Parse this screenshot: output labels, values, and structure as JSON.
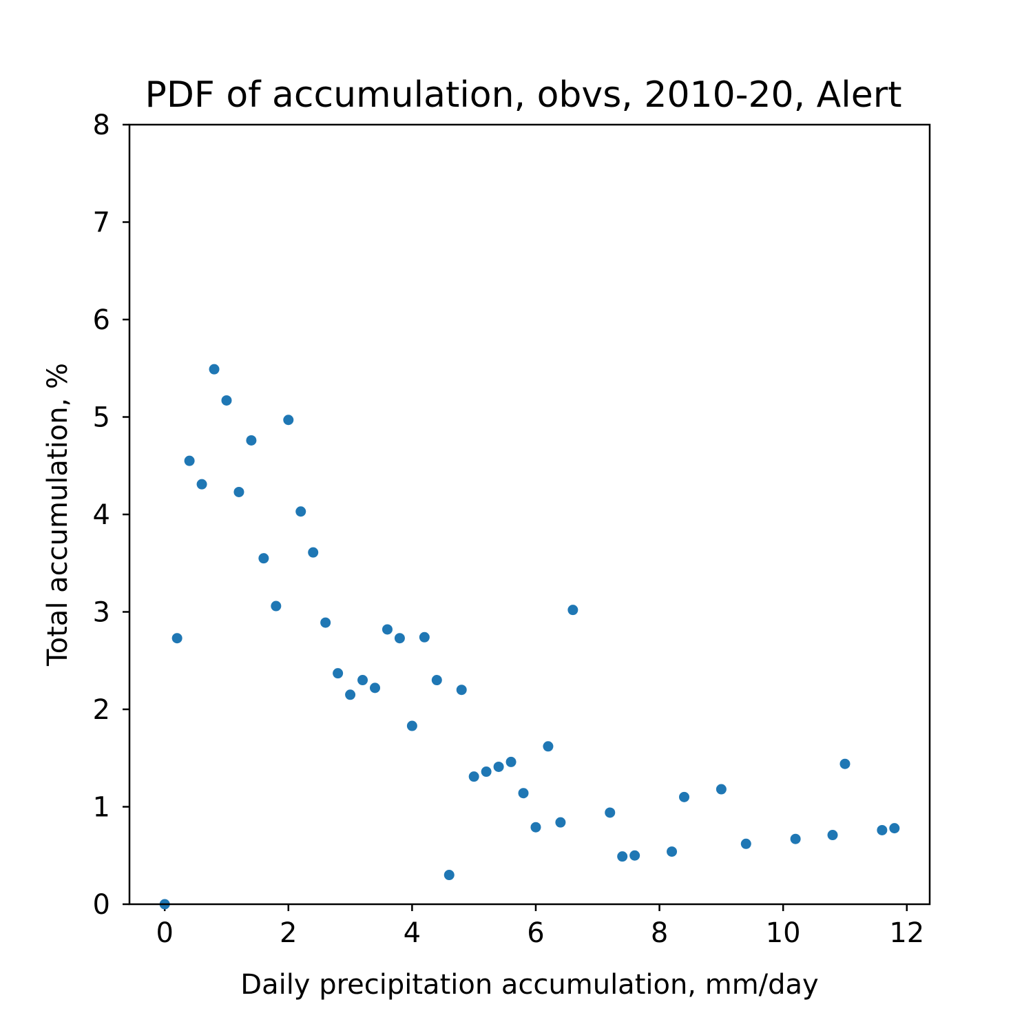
{
  "colors": {
    "marker": "#1f77b4",
    "axes": "#000000",
    "background": "#ffffff"
  },
  "chart_data": {
    "type": "scatter",
    "title": "PDF of accumulation, obvs, 2010-20, Alert",
    "xlabel": "Daily precipitation accumulation, mm/day",
    "ylabel": "Total accumulation, %",
    "xlim": [
      -0.57,
      12.37
    ],
    "ylim": [
      0,
      8
    ],
    "xticks": [
      0,
      2,
      4,
      6,
      8,
      10,
      12
    ],
    "yticks": [
      0,
      1,
      2,
      3,
      4,
      5,
      6,
      7,
      8
    ],
    "grid": false,
    "legend": "none",
    "series": [
      {
        "x": [
          0.0,
          0.2,
          0.4,
          0.6,
          0.8,
          1.0,
          1.2,
          1.4,
          1.6,
          1.8,
          2.0,
          2.2,
          2.4,
          2.6,
          2.8,
          3.0,
          3.2,
          3.4,
          3.6,
          3.8,
          4.0,
          4.2,
          4.4,
          4.6,
          4.8,
          5.0,
          5.2,
          5.4,
          5.6,
          5.8,
          6.0,
          6.2,
          6.4,
          6.6,
          7.2,
          7.4,
          7.6,
          8.2,
          8.4,
          9.0,
          9.4,
          10.2,
          10.8,
          11.0,
          11.6,
          11.8
        ],
        "y": [
          0.0,
          2.73,
          4.55,
          4.31,
          5.49,
          5.17,
          4.23,
          4.76,
          3.55,
          3.06,
          4.97,
          4.03,
          3.61,
          2.89,
          2.37,
          2.15,
          2.3,
          2.22,
          2.82,
          2.73,
          1.83,
          2.74,
          2.3,
          0.3,
          2.2,
          1.31,
          1.36,
          1.41,
          1.46,
          1.14,
          0.79,
          1.62,
          0.84,
          3.02,
          0.94,
          0.49,
          0.5,
          0.54,
          1.1,
          1.18,
          0.62,
          0.67,
          0.71,
          1.44,
          0.76,
          0.78
        ]
      }
    ]
  }
}
